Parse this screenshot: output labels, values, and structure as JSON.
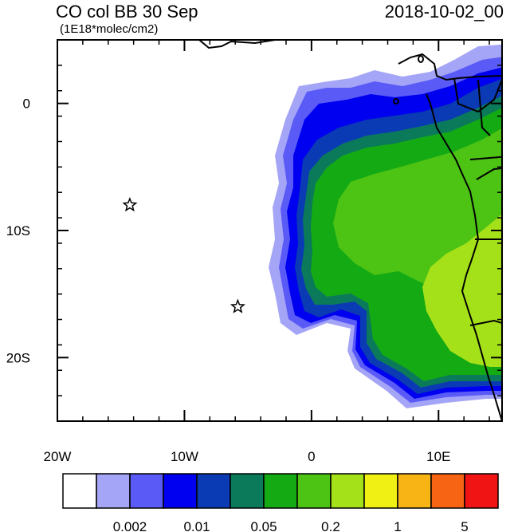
{
  "title": "CO col BB 30 Sep",
  "units": "(1E18*molec/cm2)",
  "datetime": "2018-10-02_00",
  "map": {
    "x_ticks": [
      {
        "lon": -20,
        "label": "20W"
      },
      {
        "lon": -10,
        "label": "10W"
      },
      {
        "lon": 0,
        "label": "0"
      },
      {
        "lon": 10,
        "label": "10E"
      }
    ],
    "y_ticks": [
      {
        "lat": 0,
        "label": "0"
      },
      {
        "lat": -10,
        "label": "10S"
      },
      {
        "lat": -20,
        "label": "20S"
      }
    ],
    "lon_range": [
      -20,
      15
    ],
    "lat_range": [
      -25,
      5
    ],
    "markers": [
      {
        "name": "star-marker-1",
        "lon": -14.3,
        "lat": -8.0
      },
      {
        "name": "star-marker-2",
        "lon": -5.8,
        "lat": -16.0
      }
    ]
  },
  "colorbar": {
    "colors": [
      "#ffffff",
      "#a5a5f7",
      "#5a5af7",
      "#0000f0",
      "#0a3ab4",
      "#0a7a5a",
      "#14aa14",
      "#4dc314",
      "#a5e119",
      "#f0f014",
      "#f7b414",
      "#f76414",
      "#f01414"
    ],
    "labels": [
      {
        "index": 2,
        "text": "0.002"
      },
      {
        "index": 4,
        "text": "0.01"
      },
      {
        "index": 6,
        "text": "0.05"
      },
      {
        "index": 8,
        "text": "0.2"
      },
      {
        "index": 10,
        "text": "1"
      },
      {
        "index": 12,
        "text": "5"
      }
    ]
  }
}
